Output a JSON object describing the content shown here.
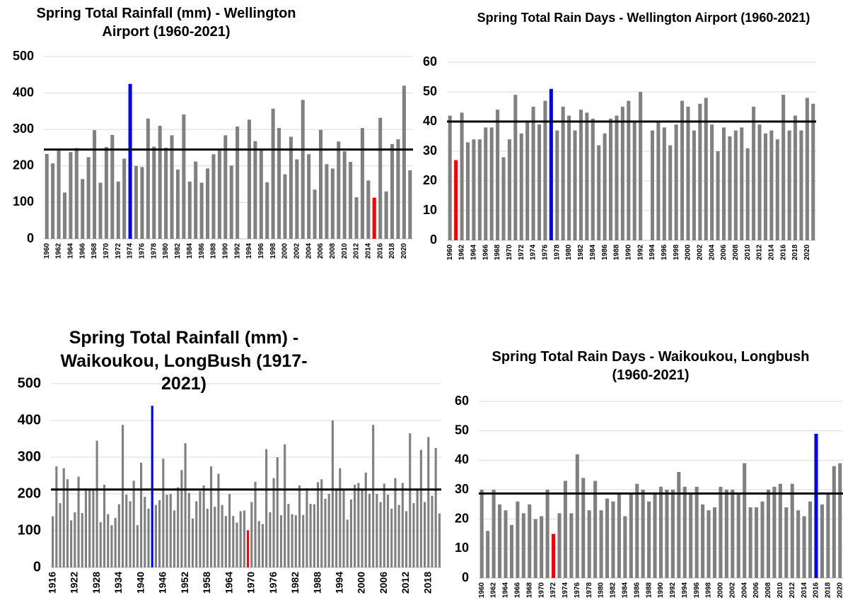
{
  "chart_data": [
    {
      "type": "bar",
      "title": "Spring Total Rainfall (mm) - Wellington Airport (1960-2021)",
      "categories": [
        1960,
        null,
        1962,
        null,
        1964,
        null,
        1966,
        null,
        1968,
        null,
        1970,
        null,
        1972,
        null,
        1974,
        null,
        1976,
        null,
        1978,
        null,
        1980,
        null,
        1982,
        null,
        1984,
        null,
        1986,
        null,
        1988,
        null,
        1990,
        null,
        1992,
        null,
        1994,
        null,
        1996,
        null,
        1998,
        null,
        2000,
        null,
        2002,
        null,
        2004,
        null,
        2006,
        null,
        2008,
        null,
        2010,
        null,
        2012,
        null,
        2014,
        null,
        2016,
        null,
        2018,
        null,
        2020,
        null
      ],
      "values": [
        233,
        207,
        242,
        127,
        238,
        249,
        164,
        224,
        298,
        154,
        252,
        285,
        157,
        220,
        425,
        200,
        197,
        330,
        253,
        310,
        250,
        284,
        190,
        341,
        157,
        212,
        154,
        193,
        232,
        242,
        284,
        201,
        308,
        null,
        327,
        268,
        245,
        155,
        357,
        304,
        177,
        280,
        218,
        381,
        232,
        135,
        299,
        205,
        193,
        267,
        240,
        211,
        114,
        304,
        160,
        113,
        332,
        130,
        260,
        273,
        420,
        188
      ],
      "color": "#808080",
      "highlight": {
        "max": "#0000ff",
        "min": "#ff0000"
      },
      "mean_line": 245,
      "mean_color": "#000000",
      "ylim": [
        0,
        500
      ],
      "yticks": [
        0,
        100,
        200,
        300,
        400,
        500
      ],
      "grid": true
    },
    {
      "type": "bar",
      "title": "Spring Total Rain Days - Wellington Airport (1960-2021)",
      "categories": [
        1960,
        null,
        1962,
        null,
        1964,
        null,
        1966,
        null,
        1968,
        null,
        1970,
        null,
        1972,
        null,
        1974,
        null,
        1976,
        null,
        1978,
        null,
        1980,
        null,
        1982,
        null,
        1984,
        null,
        1986,
        null,
        1988,
        null,
        1990,
        null,
        1992,
        null,
        1994,
        null,
        1996,
        null,
        1998,
        null,
        2000,
        null,
        2002,
        null,
        2004,
        null,
        2006,
        null,
        2008,
        null,
        2010,
        null,
        2012,
        null,
        2014,
        null,
        2016,
        null,
        2018,
        null,
        2020,
        null
      ],
      "values": [
        42,
        27,
        43,
        33,
        34,
        34,
        38,
        38,
        44,
        28,
        34,
        49,
        36,
        40,
        45,
        39,
        47,
        51,
        37,
        45,
        42,
        37,
        44,
        43,
        41,
        32,
        36,
        41,
        42,
        45,
        47,
        40,
        50,
        null,
        37,
        40,
        38,
        32,
        39,
        47,
        45,
        37,
        46,
        48,
        39,
        30,
        38,
        35,
        37,
        38,
        31,
        45,
        39,
        36,
        37,
        34,
        49,
        37,
        42,
        37,
        48,
        46
      ],
      "color": "#808080",
      "highlight": {
        "max": "#0000ff",
        "min": "#ff0000"
      },
      "mean_line": 40,
      "mean_color": "#000000",
      "ylim": [
        0,
        60
      ],
      "yticks": [
        0,
        10,
        20,
        30,
        40,
        50,
        60
      ],
      "grid": true
    },
    {
      "type": "bar",
      "title": "Spring Total Rainfall (mm) - Waikoukou, LongBush (1917-2021)",
      "categories": [
        1916,
        null,
        null,
        null,
        null,
        null,
        1922,
        null,
        null,
        null,
        null,
        null,
        1928,
        null,
        null,
        null,
        null,
        null,
        1934,
        null,
        null,
        null,
        null,
        null,
        1940,
        null,
        null,
        null,
        null,
        null,
        1946,
        null,
        null,
        null,
        null,
        null,
        1952,
        null,
        null,
        null,
        null,
        null,
        1958,
        null,
        null,
        null,
        null,
        null,
        1964,
        null,
        null,
        null,
        null,
        null,
        1970,
        null,
        null,
        null,
        null,
        null,
        1976,
        null,
        null,
        null,
        null,
        null,
        1982,
        null,
        null,
        null,
        null,
        null,
        1988,
        null,
        null,
        null,
        null,
        null,
        1994,
        null,
        null,
        null,
        null,
        null,
        2000,
        null,
        null,
        null,
        null,
        null,
        2006,
        null,
        null,
        null,
        null,
        null,
        2012,
        null,
        null,
        null,
        null,
        null,
        2018,
        null,
        null,
        null
      ],
      "values": [
        139,
        275,
        175,
        270,
        240,
        128,
        150,
        247,
        148,
        215,
        213,
        212,
        345,
        123,
        225,
        145,
        115,
        135,
        172,
        388,
        198,
        180,
        236,
        115,
        285,
        192,
        160,
        440,
        170,
        183,
        296,
        198,
        200,
        155,
        218,
        265,
        338,
        203,
        133,
        180,
        208,
        223,
        160,
        275,
        165,
        255,
        170,
        140,
        200,
        140,
        122,
        153,
        155,
        101,
        178,
        233,
        126,
        118,
        322,
        150,
        243,
        300,
        142,
        335,
        173,
        145,
        142,
        223,
        143,
        215,
        173,
        172,
        232,
        240,
        187,
        200,
        400,
        210,
        270,
        210,
        130,
        185,
        225,
        230,
        210,
        258,
        200,
        388,
        200,
        178,
        228,
        198,
        160,
        243,
        170,
        230,
        153,
        365,
        175,
        210,
        320,
        178,
        355,
        195,
        325,
        147
      ],
      "color": "#808080",
      "highlight": {
        "max": "#0000ff",
        "min": "#ff0000"
      },
      "mean_line": 212,
      "mean_color": "#000000",
      "ylim": [
        0,
        500
      ],
      "yticks": [
        0,
        100,
        200,
        300,
        400,
        500
      ],
      "grid": true
    },
    {
      "type": "bar",
      "title": "Spring Total Rain Days - Waikoukou, Longbush (1960-2021)",
      "categories": [
        1960,
        null,
        1962,
        null,
        1964,
        null,
        1966,
        null,
        1968,
        null,
        1970,
        null,
        1972,
        null,
        1974,
        null,
        1976,
        null,
        1978,
        null,
        1980,
        null,
        1982,
        null,
        1984,
        null,
        1986,
        null,
        1988,
        null,
        1990,
        null,
        1992,
        null,
        1994,
        null,
        1996,
        null,
        1998,
        null,
        2000,
        null,
        2002,
        null,
        2004,
        null,
        2006,
        null,
        2008,
        null,
        2010,
        null,
        2012,
        null,
        2014,
        null,
        2016,
        null,
        2018,
        null,
        2020
      ],
      "values": [
        30,
        16,
        30,
        25,
        23,
        18,
        26,
        22,
        25,
        20,
        21,
        30,
        15,
        22,
        33,
        22,
        42,
        34,
        23,
        33,
        23,
        27,
        26,
        29,
        21,
        29,
        32,
        30,
        26,
        29,
        31,
        30,
        30,
        36,
        31,
        29,
        31,
        25,
        23,
        24,
        31,
        30,
        30,
        29,
        39,
        24,
        24,
        26,
        30,
        31,
        32,
        24,
        32,
        23,
        21,
        26,
        49,
        25,
        29,
        38,
        39
      ],
      "color": "#808080",
      "highlight": {
        "max": "#0000ff",
        "min": "#ff0000"
      },
      "mean_line": 28.7,
      "mean_color": "#000000",
      "ylim": [
        0,
        60
      ],
      "yticks": [
        0,
        10,
        20,
        30,
        40,
        50,
        60
      ],
      "grid": true
    }
  ]
}
